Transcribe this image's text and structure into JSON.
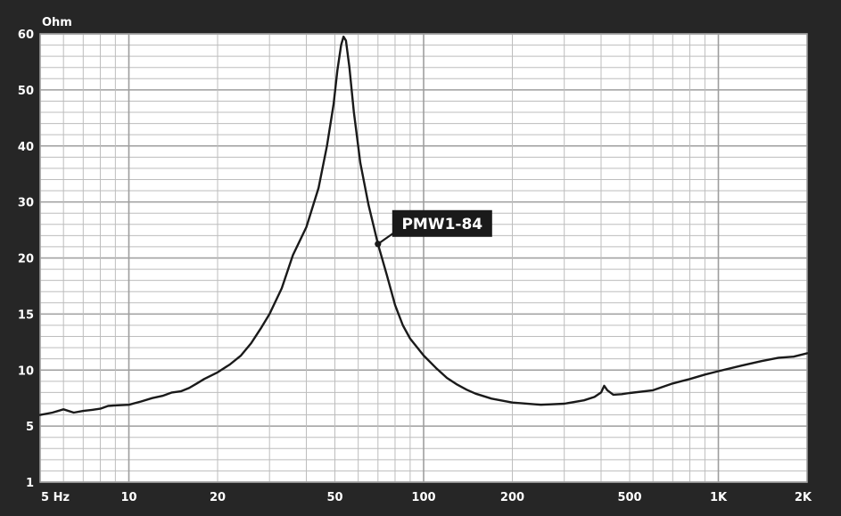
{
  "chart_data": {
    "type": "line",
    "title": "",
    "xlabel": "",
    "ylabel": "Ohm",
    "x_scale": "log",
    "xlim": [
      5,
      2000
    ],
    "y_ticks": [
      {
        "value": 1,
        "label": "1"
      },
      {
        "value": 5,
        "label": "5"
      },
      {
        "value": 10,
        "label": "10"
      },
      {
        "value": 15,
        "label": "15"
      },
      {
        "value": 20,
        "label": "20"
      },
      {
        "value": 30,
        "label": "30"
      },
      {
        "value": 40,
        "label": "40"
      },
      {
        "value": 50,
        "label": "50"
      },
      {
        "value": 60,
        "label": "60"
      }
    ],
    "x_ticks": [
      {
        "value": 5,
        "label": "5  Hz"
      },
      {
        "value": 10,
        "label": "10"
      },
      {
        "value": 20,
        "label": "20"
      },
      {
        "value": 50,
        "label": "50"
      },
      {
        "value": 100,
        "label": "100"
      },
      {
        "value": 200,
        "label": "200"
      },
      {
        "value": 500,
        "label": "500"
      },
      {
        "value": 1000,
        "label": "1K"
      },
      {
        "value": 2000,
        "label": "2K"
      }
    ],
    "grid": true,
    "colors": {
      "background": "#262626",
      "plot_bg": "#ffffff",
      "grid": "#bdbdbd",
      "grid_major": "#9e9e9e",
      "line": "#1a1a1a",
      "text": "#ffffff",
      "callout_bg": "#1a1a1a"
    },
    "series": [
      {
        "name": "PMW1-84",
        "points": [
          [
            5,
            6.0
          ],
          [
            5.5,
            6.2
          ],
          [
            6,
            6.5
          ],
          [
            6.5,
            6.2
          ],
          [
            7,
            6.35
          ],
          [
            7.5,
            6.45
          ],
          [
            8,
            6.55
          ],
          [
            8.5,
            6.8
          ],
          [
            9,
            6.85
          ],
          [
            10,
            6.9
          ],
          [
            11,
            7.2
          ],
          [
            12,
            7.5
          ],
          [
            13,
            7.7
          ],
          [
            14,
            8.0
          ],
          [
            15,
            8.1
          ],
          [
            16,
            8.4
          ],
          [
            17,
            8.8
          ],
          [
            18,
            9.2
          ],
          [
            20,
            9.8
          ],
          [
            22,
            10.5
          ],
          [
            24,
            11.3
          ],
          [
            26,
            12.4
          ],
          [
            28,
            13.7
          ],
          [
            30,
            15.0
          ],
          [
            33,
            17.3
          ],
          [
            36,
            20.5
          ],
          [
            40,
            25.5
          ],
          [
            44,
            32.5
          ],
          [
            47,
            40.0
          ],
          [
            49.5,
            47.5
          ],
          [
            51,
            53.5
          ],
          [
            52.5,
            58.0
          ],
          [
            53.5,
            59.5
          ],
          [
            54.5,
            58.8
          ],
          [
            56,
            54.0
          ],
          [
            58,
            46.0
          ],
          [
            61,
            37.0
          ],
          [
            65,
            29.5
          ],
          [
            70,
            22.5
          ],
          [
            75,
            18.5
          ],
          [
            80,
            15.8
          ],
          [
            85,
            14.0
          ],
          [
            90,
            12.8
          ],
          [
            100,
            11.3
          ],
          [
            110,
            10.2
          ],
          [
            120,
            9.3
          ],
          [
            130,
            8.7
          ],
          [
            140,
            8.25
          ],
          [
            150,
            7.9
          ],
          [
            170,
            7.45
          ],
          [
            200,
            7.1
          ],
          [
            250,
            6.9
          ],
          [
            300,
            7.0
          ],
          [
            350,
            7.3
          ],
          [
            380,
            7.6
          ],
          [
            400,
            8.0
          ],
          [
            410,
            8.6
          ],
          [
            420,
            8.2
          ],
          [
            440,
            7.8
          ],
          [
            470,
            7.85
          ],
          [
            500,
            7.95
          ],
          [
            600,
            8.2
          ],
          [
            700,
            8.8
          ],
          [
            800,
            9.2
          ],
          [
            900,
            9.6
          ],
          [
            1000,
            9.9
          ],
          [
            1200,
            10.4
          ],
          [
            1400,
            10.8
          ],
          [
            1600,
            11.1
          ],
          [
            1800,
            11.2
          ],
          [
            2000,
            11.5
          ]
        ]
      }
    ],
    "annotations": [
      {
        "text": "PMW1-84",
        "x": 70,
        "y": 22.5
      }
    ]
  }
}
